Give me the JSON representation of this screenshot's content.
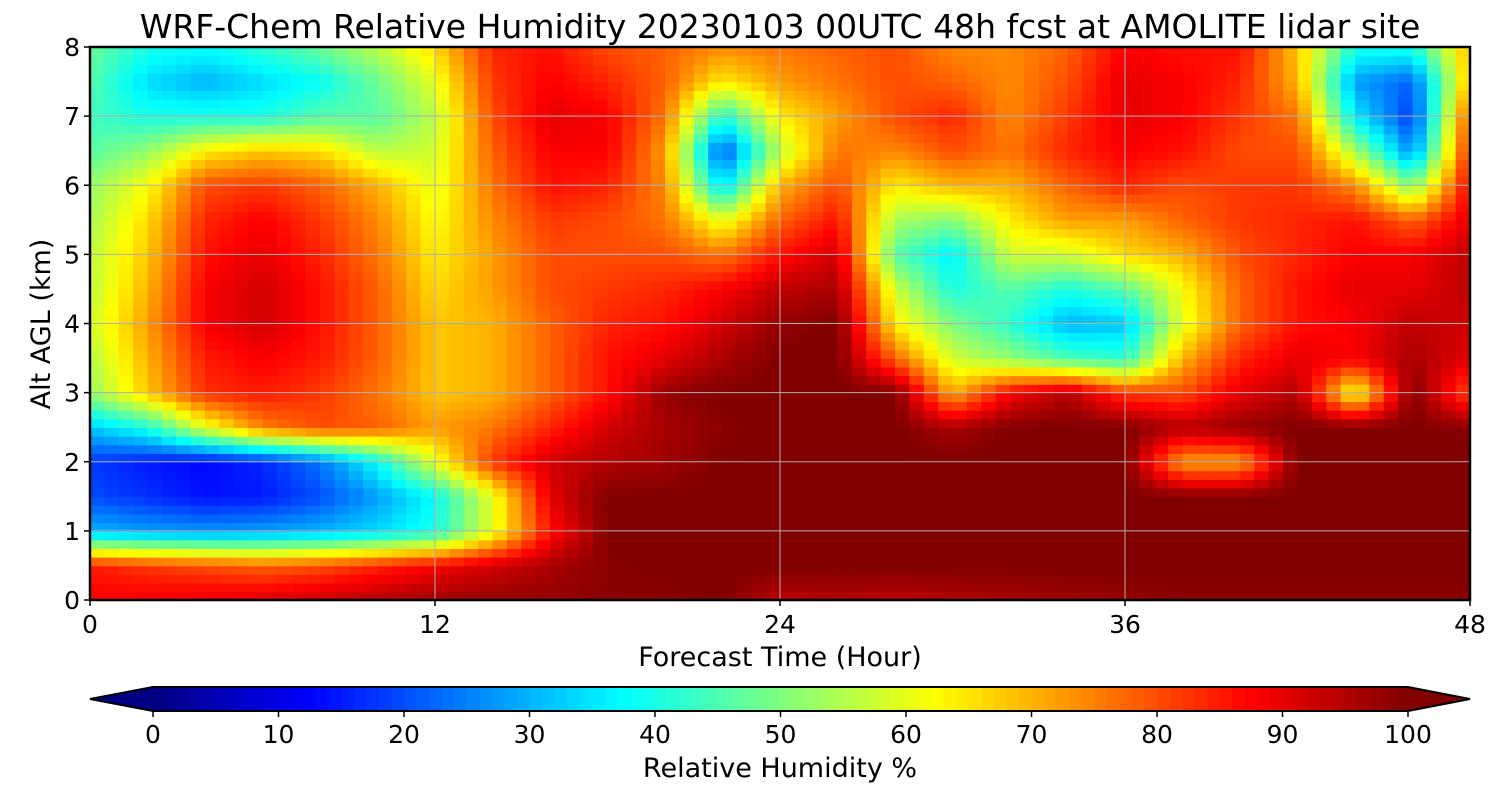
{
  "chart_data": {
    "type": "heatmap",
    "title": "WRF-Chem Relative Humidity 20230103 00UTC 48h fcst at AMOLITE lidar site",
    "xlabel": "Forecast Time (Hour)",
    "ylabel": "Alt AGL (km)",
    "xlim": [
      0,
      48
    ],
    "ylim": [
      0,
      8
    ],
    "x_ticks": [
      0,
      12,
      24,
      36,
      48
    ],
    "x_tick_labels": [
      "0",
      "12",
      "24",
      "36",
      "48"
    ],
    "y_ticks": [
      0,
      1,
      2,
      3,
      4,
      5,
      6,
      7,
      8
    ],
    "y_tick_labels": [
      "0",
      "1",
      "2",
      "3",
      "4",
      "5",
      "6",
      "7",
      "8"
    ],
    "grid": true,
    "colormap": "jet",
    "colorbar": {
      "label": "Relative Humidity %",
      "min": 0,
      "max": 100,
      "ticks": [
        0,
        10,
        20,
        30,
        40,
        50,
        60,
        70,
        80,
        90,
        100
      ],
      "tick_labels": [
        "0",
        "10",
        "20",
        "30",
        "40",
        "50",
        "60",
        "70",
        "80",
        "90",
        "100"
      ],
      "extend": "both",
      "orientation": "horizontal"
    },
    "hours": [
      0,
      2,
      4,
      6,
      8,
      10,
      12,
      14,
      16,
      18,
      20,
      22,
      24,
      26,
      28,
      30,
      32,
      34,
      36,
      38,
      40,
      42,
      44,
      46,
      48
    ],
    "heights_km": [
      0,
      0.5,
      1,
      1.5,
      2,
      2.5,
      3,
      3.5,
      4,
      4.5,
      5,
      5.5,
      6,
      6.5,
      7,
      7.5,
      8
    ],
    "rh_grid_percent": [
      [
        88,
        89,
        90,
        91,
        93,
        95,
        97,
        98,
        98,
        99,
        99,
        100,
        94,
        95,
        94,
        95,
        96,
        97,
        98,
        99,
        99,
        99,
        99,
        99,
        99
      ],
      [
        85,
        82,
        80,
        78,
        80,
        84,
        88,
        92,
        96,
        99,
        100,
        100,
        100,
        100,
        100,
        100,
        100,
        100,
        100,
        100,
        100,
        100,
        100,
        100,
        100
      ],
      [
        30,
        28,
        27,
        28,
        30,
        34,
        40,
        60,
        86,
        100,
        100,
        100,
        100,
        100,
        100,
        100,
        100,
        100,
        100,
        100,
        100,
        100,
        100,
        100,
        100
      ],
      [
        20,
        17,
        14,
        15,
        20,
        28,
        38,
        60,
        90,
        100,
        100,
        100,
        100,
        100,
        100,
        100,
        100,
        100,
        100,
        100,
        100,
        100,
        100,
        100,
        100
      ],
      [
        18,
        15,
        13,
        16,
        24,
        38,
        60,
        82,
        92,
        95,
        97,
        100,
        100,
        100,
        100,
        100,
        100,
        100,
        100,
        72,
        72,
        100,
        100,
        100,
        100
      ],
      [
        32,
        40,
        60,
        75,
        80,
        78,
        72,
        76,
        84,
        92,
        96,
        99,
        100,
        100,
        100,
        96,
        100,
        100,
        100,
        95,
        98,
        100,
        100,
        100,
        99
      ],
      [
        52,
        68,
        83,
        85,
        82,
        76,
        68,
        70,
        78,
        86,
        98,
        100,
        100,
        100,
        100,
        70,
        88,
        95,
        82,
        80,
        90,
        95,
        60,
        100,
        80
      ],
      [
        55,
        70,
        85,
        88,
        85,
        78,
        68,
        70,
        78,
        86,
        90,
        96,
        100,
        100,
        78,
        58,
        52,
        45,
        42,
        70,
        84,
        90,
        88,
        96,
        90
      ],
      [
        58,
        72,
        88,
        92,
        86,
        78,
        68,
        70,
        78,
        84,
        86,
        92,
        98,
        100,
        64,
        50,
        42,
        30,
        32,
        60,
        78,
        86,
        88,
        94,
        92
      ],
      [
        56,
        70,
        88,
        92,
        86,
        78,
        66,
        72,
        80,
        82,
        84,
        88,
        94,
        96,
        58,
        40,
        46,
        40,
        46,
        62,
        78,
        86,
        90,
        90,
        94
      ],
      [
        56,
        68,
        86,
        90,
        84,
        76,
        64,
        72,
        80,
        80,
        80,
        76,
        86,
        92,
        46,
        36,
        58,
        58,
        66,
        70,
        80,
        84,
        88,
        88,
        94
      ],
      [
        54,
        66,
        84,
        88,
        82,
        74,
        62,
        74,
        82,
        80,
        76,
        60,
        78,
        86,
        54,
        50,
        64,
        72,
        72,
        78,
        82,
        84,
        86,
        78,
        90
      ],
      [
        52,
        62,
        80,
        82,
        78,
        70,
        60,
        76,
        86,
        84,
        74,
        34,
        70,
        80,
        64,
        70,
        70,
        78,
        84,
        80,
        82,
        82,
        74,
        50,
        88
      ],
      [
        46,
        52,
        64,
        68,
        66,
        56,
        58,
        78,
        88,
        88,
        72,
        20,
        56,
        76,
        74,
        80,
        76,
        84,
        88,
        86,
        80,
        80,
        54,
        26,
        84
      ],
      [
        44,
        40,
        40,
        40,
        46,
        46,
        56,
        80,
        90,
        88,
        76,
        40,
        64,
        72,
        80,
        84,
        74,
        82,
        90,
        88,
        82,
        76,
        36,
        18,
        80
      ],
      [
        46,
        34,
        30,
        34,
        38,
        48,
        60,
        82,
        88,
        84,
        78,
        64,
        72,
        76,
        80,
        78,
        74,
        80,
        90,
        88,
        84,
        70,
        28,
        22,
        70
      ],
      [
        48,
        40,
        38,
        42,
        48,
        56,
        66,
        84,
        86,
        80,
        78,
        74,
        76,
        78,
        80,
        74,
        74,
        78,
        88,
        86,
        86,
        68,
        40,
        40,
        70
      ]
    ]
  }
}
